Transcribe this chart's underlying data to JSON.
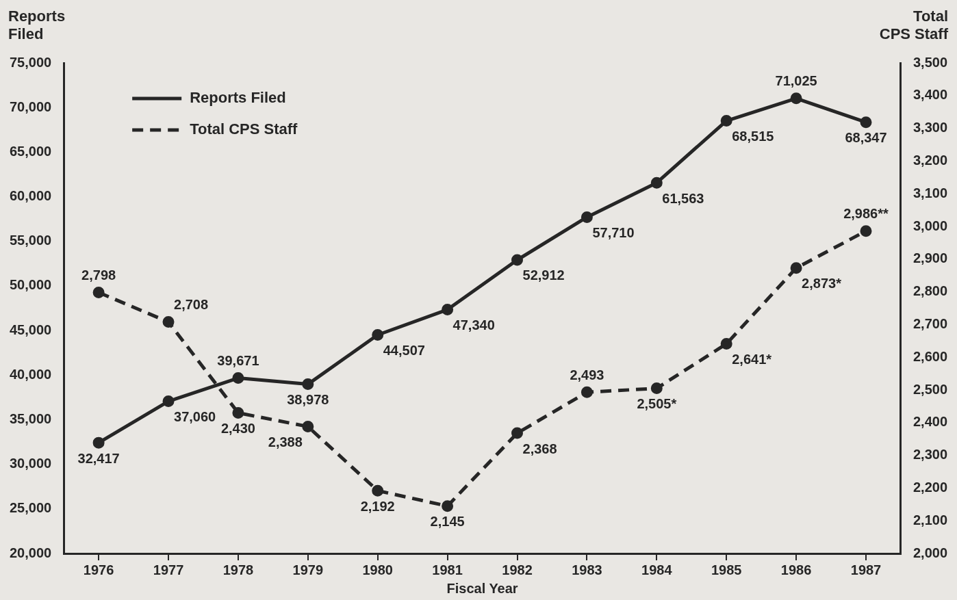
{
  "chart_data": {
    "type": "line",
    "xlabel": "Fiscal Year",
    "ylabel": "Reports Filed",
    "y2label": "Total CPS Staff",
    "categories": [
      "1976",
      "1977",
      "1978",
      "1979",
      "1980",
      "1981",
      "1982",
      "1983",
      "1984",
      "1985",
      "1986",
      "1987"
    ],
    "series": [
      {
        "name": "Reports Filed",
        "color": "#262626",
        "line_style": "solid",
        "values": [
          32417,
          37060,
          39671,
          38978,
          44507,
          47340,
          52912,
          57710,
          61563,
          68515,
          71025,
          68347
        ],
        "value_labels": [
          "32,417",
          "37,060",
          "39,671",
          "38,978",
          "44,507",
          "47,340",
          "52,912",
          "57,710",
          "61,563",
          "68,515",
          "71,025",
          "68,347"
        ]
      },
      {
        "name": "Total CPS Staff",
        "color": "#262626",
        "line_style": "dashed",
        "axis": "y2",
        "values": [
          2798,
          2708,
          2430,
          2388,
          2192,
          2145,
          2368,
          2493,
          2505,
          2641,
          2873,
          2986
        ],
        "value_labels": [
          "2,798",
          "2,708",
          "2,430",
          "2,388",
          "2,192",
          "2,145",
          "2,368",
          "2,493",
          "2,505*",
          "2,641*",
          "2,873*",
          "2,986**"
        ]
      }
    ],
    "ylim": [
      20000,
      75000
    ],
    "yticks": [
      {
        "value": 20000,
        "label": "20,000"
      },
      {
        "value": 25000,
        "label": "25,000"
      },
      {
        "value": 30000,
        "label": "30,000"
      },
      {
        "value": 35000,
        "label": "35,000"
      },
      {
        "value": 40000,
        "label": "40,000"
      },
      {
        "value": 45000,
        "label": "45,000"
      },
      {
        "value": 50000,
        "label": "50,000"
      },
      {
        "value": 55000,
        "label": "55,000"
      },
      {
        "value": 60000,
        "label": "60,000"
      },
      {
        "value": 65000,
        "label": "65,000"
      },
      {
        "value": 70000,
        "label": "70,000"
      },
      {
        "value": 75000,
        "label": "75,000"
      }
    ],
    "y2lim": [
      2000,
      3500
    ],
    "y2ticks": [
      {
        "value": 2000,
        "label": "2,000"
      },
      {
        "value": 2100,
        "label": "2,100"
      },
      {
        "value": 2200,
        "label": "2,200"
      },
      {
        "value": 2300,
        "label": "2,300"
      },
      {
        "value": 2400,
        "label": "2,400"
      },
      {
        "value": 2500,
        "label": "2,500"
      },
      {
        "value": 2600,
        "label": "2,600"
      },
      {
        "value": 2700,
        "label": "2,700"
      },
      {
        "value": 2800,
        "label": "2,800"
      },
      {
        "value": 2900,
        "label": "2,900"
      },
      {
        "value": 3000,
        "label": "3,000"
      },
      {
        "value": 3100,
        "label": "3,100"
      },
      {
        "value": 3200,
        "label": "3,200"
      },
      {
        "value": 3300,
        "label": "3,300"
      },
      {
        "value": 3400,
        "label": "3,400"
      },
      {
        "value": 3500,
        "label": "3,500"
      }
    ],
    "grid": false,
    "legend": "top left",
    "marker": "circle"
  }
}
